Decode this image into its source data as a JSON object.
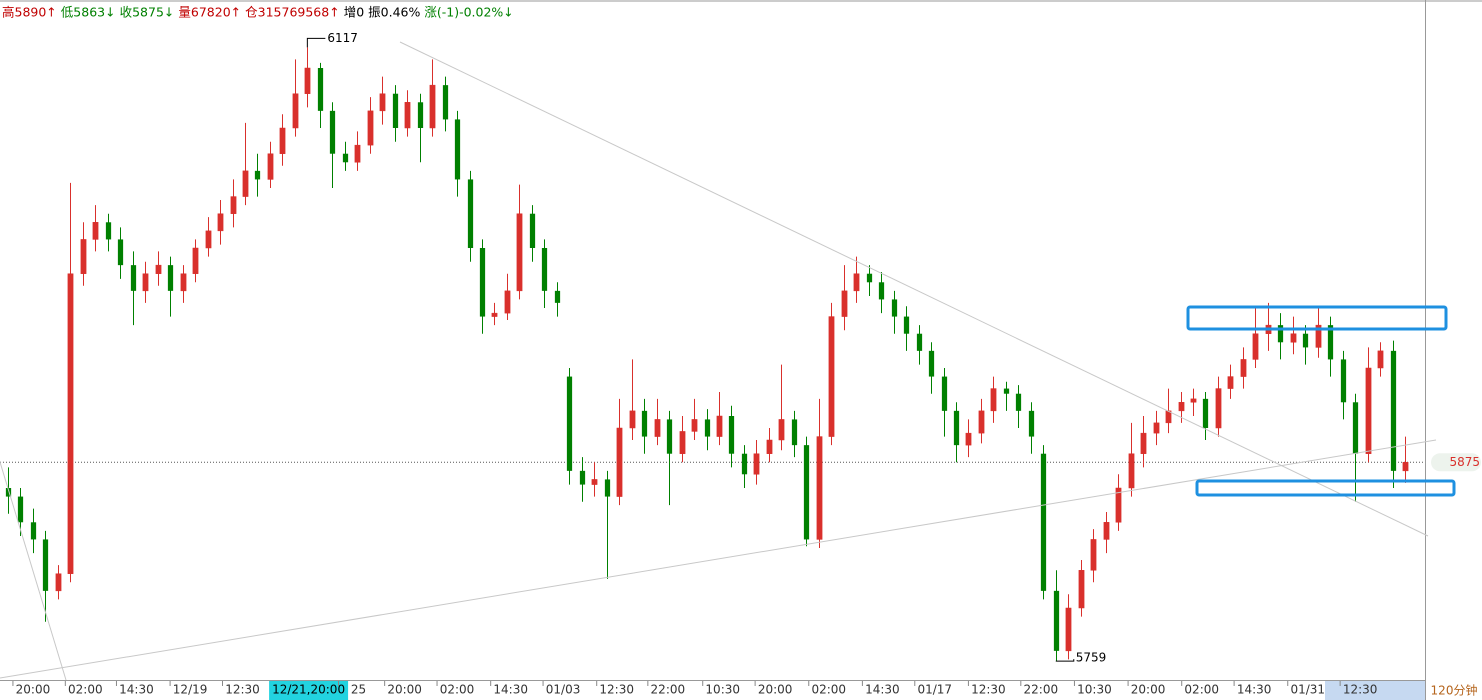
{
  "chart_data": {
    "type": "candlestick",
    "header": [
      {
        "text": "高5890↑",
        "color": "#c00000"
      },
      {
        "text": "低5863↓",
        "color": "#008000"
      },
      {
        "text": "收5875↓",
        "color": "#008000"
      },
      {
        "text": "量67820↑",
        "color": "#c00000"
      },
      {
        "text": "仓315769568↑",
        "color": "#c00000"
      },
      {
        "text": "增0",
        "color": "#000000"
      },
      {
        "text": "振0.46%",
        "color": "#000000"
      },
      {
        "text": "涨(-1)-0.02%↓",
        "color": "#008000"
      }
    ],
    "period": "120分钟",
    "up_color": "#d9302c",
    "down_color": "#008000",
    "candles": [
      [
        5860,
        5872,
        5845,
        5855
      ],
      [
        5855,
        5860,
        5832,
        5840
      ],
      [
        5840,
        5848,
        5822,
        5830
      ],
      [
        5830,
        5835,
        5782,
        5800
      ],
      [
        5800,
        5815,
        5795,
        5810
      ],
      [
        5810,
        6038,
        5805,
        5985
      ],
      [
        5985,
        6015,
        5978,
        6005
      ],
      [
        6005,
        6025,
        5998,
        6015
      ],
      [
        6015,
        6020,
        5998,
        6005
      ],
      [
        6005,
        6012,
        5982,
        5990
      ],
      [
        5990,
        5998,
        5955,
        5975
      ],
      [
        5975,
        5992,
        5968,
        5985
      ],
      [
        5985,
        5998,
        5978,
        5990
      ],
      [
        5990,
        5995,
        5960,
        5975
      ],
      [
        5975,
        5990,
        5968,
        5985
      ],
      [
        5985,
        6005,
        5980,
        6000
      ],
      [
        6000,
        6018,
        5995,
        6010
      ],
      [
        6010,
        6028,
        6002,
        6020
      ],
      [
        6020,
        6040,
        6012,
        6030
      ],
      [
        6030,
        6073,
        6025,
        6045
      ],
      [
        6045,
        6055,
        6030,
        6040
      ],
      [
        6040,
        6062,
        6035,
        6055
      ],
      [
        6055,
        6078,
        6048,
        6070
      ],
      [
        6070,
        6110,
        6065,
        6090
      ],
      [
        6090,
        6117,
        6082,
        6105
      ],
      [
        6105,
        6108,
        6070,
        6080
      ],
      [
        6080,
        6085,
        6035,
        6055
      ],
      [
        6055,
        6062,
        6045,
        6050
      ],
      [
        6050,
        6068,
        6045,
        6060
      ],
      [
        6060,
        6088,
        6055,
        6080
      ],
      [
        6080,
        6100,
        6072,
        6090
      ],
      [
        6090,
        6095,
        6062,
        6070
      ],
      [
        6070,
        6092,
        6065,
        6085
      ],
      [
        6085,
        6090,
        6050,
        6070
      ],
      [
        6070,
        6110,
        6065,
        6095
      ],
      [
        6095,
        6100,
        6068,
        6075
      ],
      [
        6075,
        6080,
        6030,
        6040
      ],
      [
        6040,
        6045,
        5992,
        6000
      ],
      [
        6000,
        6005,
        5950,
        5960
      ],
      [
        5960,
        5968,
        5955,
        5962
      ],
      [
        5962,
        5985,
        5958,
        5975
      ],
      [
        5975,
        6037,
        5970,
        6020
      ],
      [
        6020,
        6025,
        5992,
        6000
      ],
      [
        6000,
        6005,
        5965,
        5975
      ],
      [
        5975,
        5980,
        5960,
        5968
      ],
      [
        5925,
        5930,
        5862,
        5870
      ],
      [
        5870,
        5878,
        5852,
        5862
      ],
      [
        5862,
        5875,
        5855,
        5865
      ],
      [
        5865,
        5870,
        5807,
        5855
      ],
      [
        5855,
        5912,
        5850,
        5895
      ],
      [
        5895,
        5935,
        5888,
        5905
      ],
      [
        5905,
        5912,
        5880,
        5890
      ],
      [
        5890,
        5912,
        5885,
        5900
      ],
      [
        5900,
        5905,
        5850,
        5880
      ],
      [
        5880,
        5902,
        5875,
        5893
      ],
      [
        5893,
        5912,
        5888,
        5900
      ],
      [
        5900,
        5906,
        5882,
        5890
      ],
      [
        5890,
        5916,
        5885,
        5902
      ],
      [
        5902,
        5908,
        5872,
        5880
      ],
      [
        5880,
        5885,
        5860,
        5868
      ],
      [
        5868,
        5888,
        5862,
        5880
      ],
      [
        5880,
        5895,
        5875,
        5888
      ],
      [
        5888,
        5932,
        5882,
        5900
      ],
      [
        5900,
        5905,
        5878,
        5885
      ],
      [
        5885,
        5890,
        5826,
        5830
      ],
      [
        5830,
        5912,
        5825,
        5890
      ],
      [
        5890,
        5968,
        5885,
        5960
      ],
      [
        5960,
        5990,
        5952,
        5975
      ],
      [
        5975,
        5995,
        5968,
        5985
      ],
      [
        5985,
        5990,
        5972,
        5980
      ],
      [
        5980,
        5986,
        5962,
        5970
      ],
      [
        5970,
        5975,
        5950,
        5960
      ],
      [
        5960,
        5966,
        5940,
        5950
      ],
      [
        5950,
        5955,
        5932,
        5940
      ],
      [
        5940,
        5945,
        5915,
        5925
      ],
      [
        5925,
        5930,
        5890,
        5905
      ],
      [
        5905,
        5910,
        5875,
        5885
      ],
      [
        5885,
        5900,
        5878,
        5892
      ],
      [
        5892,
        5912,
        5886,
        5905
      ],
      [
        5905,
        5925,
        5898,
        5918
      ],
      [
        5918,
        5922,
        5905,
        5915
      ],
      [
        5915,
        5920,
        5895,
        5905
      ],
      [
        5905,
        5910,
        5880,
        5890
      ],
      [
        5880,
        5885,
        5795,
        5800
      ],
      [
        5800,
        5812,
        5759,
        5765
      ],
      [
        5765,
        5798,
        5760,
        5790
      ],
      [
        5790,
        5818,
        5785,
        5812
      ],
      [
        5812,
        5836,
        5805,
        5830
      ],
      [
        5830,
        5846,
        5822,
        5840
      ],
      [
        5840,
        5868,
        5835,
        5860
      ],
      [
        5860,
        5898,
        5855,
        5880
      ],
      [
        5880,
        5902,
        5872,
        5892
      ],
      [
        5892,
        5905,
        5885,
        5898
      ],
      [
        5898,
        5918,
        5892,
        5905
      ],
      [
        5905,
        5916,
        5898,
        5910
      ],
      [
        5910,
        5918,
        5902,
        5912
      ],
      [
        5912,
        5916,
        5888,
        5895
      ],
      [
        5895,
        5925,
        5890,
        5918
      ],
      [
        5918,
        5932,
        5912,
        5925
      ],
      [
        5925,
        5942,
        5918,
        5935
      ],
      [
        5935,
        5965,
        5930,
        5950
      ],
      [
        5950,
        5968,
        5940,
        5955
      ],
      [
        5955,
        5962,
        5935,
        5945
      ],
      [
        5945,
        5960,
        5938,
        5950
      ],
      [
        5950,
        5955,
        5932,
        5942
      ],
      [
        5942,
        5965,
        5936,
        5955
      ],
      [
        5955,
        5960,
        5925,
        5935
      ],
      [
        5935,
        5940,
        5900,
        5910
      ],
      [
        5910,
        5915,
        5852,
        5880
      ],
      [
        5880,
        5942,
        5875,
        5930
      ],
      [
        5930,
        5945,
        5925,
        5940
      ],
      [
        5940,
        5946,
        5860,
        5870
      ],
      [
        5870,
        5890,
        5863,
        5875
      ]
    ],
    "annotations": [
      {
        "value": 6117,
        "at": "high"
      },
      {
        "value": 5759,
        "at": "low"
      }
    ],
    "last_price": 5875,
    "xlim": [
      -0.64,
      113.6
    ],
    "ylim": [
      5748,
      6133
    ],
    "xticks": [
      {
        "value": 2.0,
        "label": "20:00"
      },
      {
        "value": 6.2,
        "label": "02:00"
      },
      {
        "value": 10.3,
        "label": "14:30"
      },
      {
        "value": 14.6,
        "label": "12/19"
      },
      {
        "value": 18.8,
        "label": "12:30"
      },
      {
        "value": 24.1,
        "label": "12/21,20:00",
        "highlight": true
      },
      {
        "value": 28.1,
        "label": "25"
      },
      {
        "value": 31.8,
        "label": "20:00"
      },
      {
        "value": 36.0,
        "label": "02:00"
      },
      {
        "value": 40.3,
        "label": "14:30"
      },
      {
        "value": 44.5,
        "label": "01/03"
      },
      {
        "value": 48.8,
        "label": "12:30"
      },
      {
        "value": 52.9,
        "label": "22:00"
      },
      {
        "value": 57.3,
        "label": "10:30"
      },
      {
        "value": 61.5,
        "label": "20:00"
      },
      {
        "value": 65.8,
        "label": "02:00"
      },
      {
        "value": 70.1,
        "label": "14:30"
      },
      {
        "value": 74.3,
        "label": "01/17"
      },
      {
        "value": 78.6,
        "label": "12:30"
      },
      {
        "value": 82.8,
        "label": "22:00"
      },
      {
        "value": 87.1,
        "label": "10:30"
      },
      {
        "value": 91.4,
        "label": "20:00"
      },
      {
        "value": 95.7,
        "label": "02:00"
      },
      {
        "value": 99.9,
        "label": "14:30"
      },
      {
        "value": 104.2,
        "label": "01/31"
      },
      {
        "value": 108.4,
        "label": "12:30",
        "highlight_soft": true
      }
    ]
  }
}
